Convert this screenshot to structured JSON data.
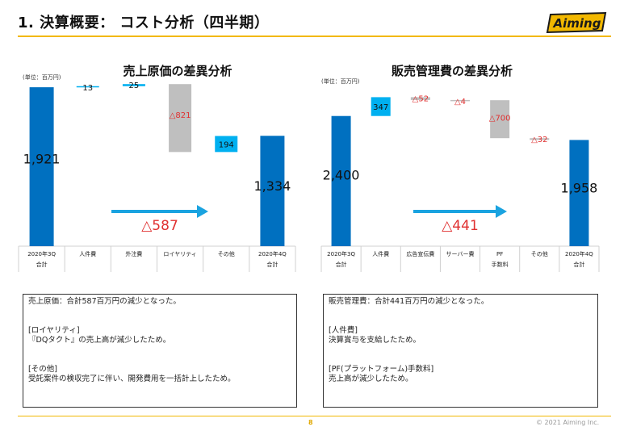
{
  "header": {
    "title": "1. 決算概要： コスト分析（四半期）",
    "logo_text": "Aiming"
  },
  "charts_text": {
    "left_title": "売上原価の差異分析",
    "right_title": "販売管理費の差異分析",
    "unit": "(単位：百万円)"
  },
  "chart_data": [
    {
      "type": "bar",
      "title": "売上原価の差異分析",
      "categories": [
        [
          "2020年3Q",
          "合計"
        ],
        [
          "人件費"
        ],
        [
          "外注費"
        ],
        [
          "ロイヤリティ"
        ],
        [
          "その他"
        ],
        [
          "2020年4Q",
          "合計"
        ]
      ],
      "values": [
        1921,
        13,
        25,
        -821,
        194,
        1334
      ],
      "labels": [
        "1,921",
        "13",
        "25",
        "△821",
        "194",
        "1,334"
      ],
      "total_change_label": "△587"
    },
    {
      "type": "bar",
      "title": "販売管理費の差異分析",
      "categories": [
        [
          "2020年3Q",
          "合計"
        ],
        [
          "人件費"
        ],
        [
          "広告宣伝費"
        ],
        [
          "サーバー費"
        ],
        [
          "PF",
          "手数料"
        ],
        [
          "その他"
        ],
        [
          "2020年4Q",
          "合計"
        ]
      ],
      "values": [
        2400,
        347,
        -52,
        -4,
        -700,
        -32,
        1958
      ],
      "labels": [
        "2,400",
        "347",
        "△52",
        "△4",
        "△700",
        "△32",
        "1,958"
      ],
      "total_change_label": "△441"
    }
  ],
  "notes_left": {
    "line1": "売上原価：合計587百万円の減少となった。",
    "h1": "[ロイヤリティ]",
    "t1": "『DQタクト』の売上高が減少したため。",
    "h2": "[その他]",
    "t2": "受託案件の検収完了に伴い、開発費用を一括計上したため。"
  },
  "notes_right": {
    "line1": "販売管理費：合計441百万円の減少となった。",
    "h1": "[人件費]",
    "t1": "決算賞与を支給したため。",
    "h2": "[PF(プラットフォーム)手数料]",
    "t2": "売上高が減少したため。"
  },
  "footer": {
    "page": "8",
    "copyright": "© 2021 Aiming Inc."
  },
  "colors": {
    "total": "#0070c0",
    "increase": "#00b0f0",
    "decrease": "#bfbfbf",
    "negative_text": "#e03030",
    "arrow": "#1aa3e0",
    "accent": "#f2b800"
  }
}
